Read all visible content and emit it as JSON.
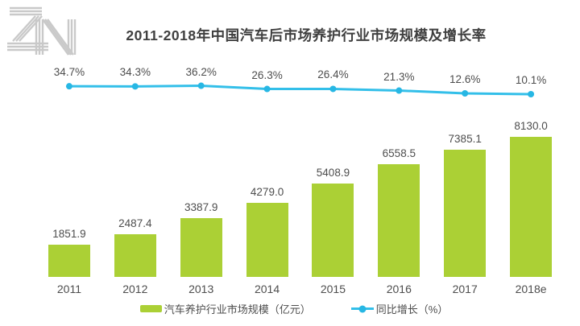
{
  "header": {
    "title": "2011-2018年中国汽车后市场养护行业市场规模及增长率"
  },
  "logo": {
    "name": "ZN",
    "color": "#c9c9c9"
  },
  "chart_data": {
    "type": "bar",
    "subtype": "bar-with-line-overlay",
    "title": "2011-2018年中国汽车后市场养护行业市场规模及增长率",
    "categories": [
      "2011",
      "2012",
      "2013",
      "2014",
      "2015",
      "2016",
      "2017",
      "2018e"
    ],
    "series": [
      {
        "name": "汽车养护行业市场规模（亿元）",
        "type": "bar",
        "color": "#abd035",
        "values": [
          1851.9,
          2487.4,
          3387.9,
          4279.0,
          5408.9,
          6558.5,
          7385.1,
          8130.0
        ],
        "unit": "亿元",
        "value_labels": "shown above bars"
      },
      {
        "name": "同比增长（%）",
        "type": "line",
        "color": "#33bfe9",
        "dot_color": "#27b7e4",
        "values": [
          34.7,
          34.3,
          36.2,
          26.3,
          26.4,
          21.3,
          12.6,
          10.1
        ],
        "unit": "%",
        "value_labels": "shown above points"
      }
    ],
    "xlabel": "",
    "ylabel": "",
    "axis_lines": "hidden",
    "gridlines": "off",
    "ylim_bar": [
      0,
      8500
    ],
    "ylim_line_pct": [
      0,
      40
    ],
    "legend_position": "bottom"
  },
  "legend": {
    "items": [
      {
        "label": "汽车养护行业市场规模（亿元）",
        "color": "#abd035",
        "marker": "square"
      },
      {
        "label": "同比增长（%）",
        "color": "#33bfe9",
        "marker": "line-dot"
      }
    ]
  }
}
